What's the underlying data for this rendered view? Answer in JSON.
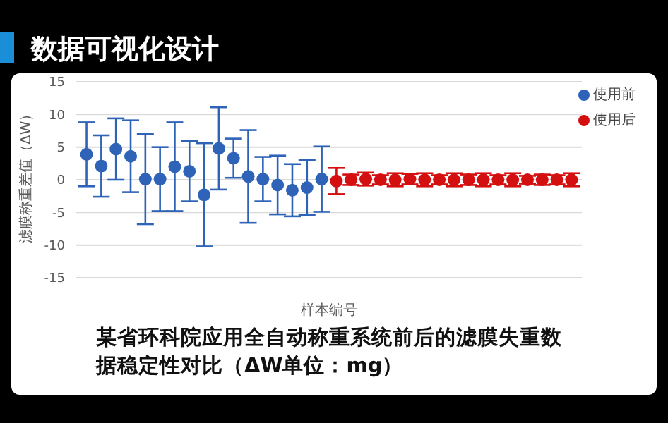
{
  "chart_data": {
    "type": "scatter",
    "title": "数据可视化设计",
    "ylabel": "滤膜称重差值（ΔW）",
    "xlabel": "样本编号",
    "annotations": [
      "某省环科院应用全自动称重系统前后的滤膜失重数据稳定性对比（ΔW单位：mg）"
    ],
    "categories": [
      null,
      null,
      null,
      null,
      null,
      null,
      null,
      null,
      null,
      null,
      null,
      null,
      null,
      null,
      null,
      null,
      null,
      null,
      null,
      null,
      null,
      null,
      null,
      null,
      null,
      null,
      null,
      null,
      null,
      null,
      null,
      null,
      null,
      null
    ],
    "ylim": [
      -15,
      15
    ],
    "yticks": [
      -15,
      -10,
      -5,
      0,
      5,
      10,
      15
    ],
    "tick_labels": "y",
    "grid": "y",
    "legend": "top right",
    "marker": "circle",
    "series": [
      {
        "name": "使用前",
        "color": "#2e63b8",
        "values": [
          3.9,
          2.1,
          4.7,
          3.6,
          0.1,
          0.1,
          2.0,
          1.3,
          -2.3,
          4.8,
          3.3,
          0.5,
          0.1,
          -0.8,
          -1.6,
          -1.2,
          0.1,
          null,
          null,
          null,
          null,
          null,
          null,
          null,
          null,
          null,
          null,
          null,
          null,
          null,
          null,
          null,
          null,
          null
        ],
        "errors": [
          4.9,
          4.7,
          4.7,
          5.5,
          6.9,
          4.9,
          6.8,
          4.6,
          7.9,
          6.3,
          3.0,
          7.1,
          3.4,
          4.5,
          4.0,
          4.2,
          5.0,
          null,
          null,
          null,
          null,
          null,
          null,
          null,
          null,
          null,
          null,
          null,
          null,
          null,
          null,
          null,
          null,
          null
        ]
      },
      {
        "name": "使用后",
        "color": "#d40f0f",
        "values": [
          null,
          null,
          null,
          null,
          null,
          null,
          null,
          null,
          null,
          null,
          null,
          null,
          null,
          null,
          null,
          null,
          null,
          -0.2,
          0,
          0.1,
          0,
          0,
          0.1,
          0,
          0,
          0,
          0,
          0,
          0,
          0,
          0,
          0,
          0,
          0
        ],
        "errors": [
          null,
          null,
          null,
          null,
          null,
          null,
          null,
          null,
          null,
          null,
          null,
          null,
          null,
          null,
          null,
          null,
          null,
          2.0,
          0.8,
          1.0,
          0.7,
          1.0,
          0.8,
          1.0,
          0.7,
          1.0,
          0.8,
          1.0,
          0.7,
          1.0,
          0.6,
          0.8,
          0.7,
          1.0
        ]
      }
    ]
  }
}
